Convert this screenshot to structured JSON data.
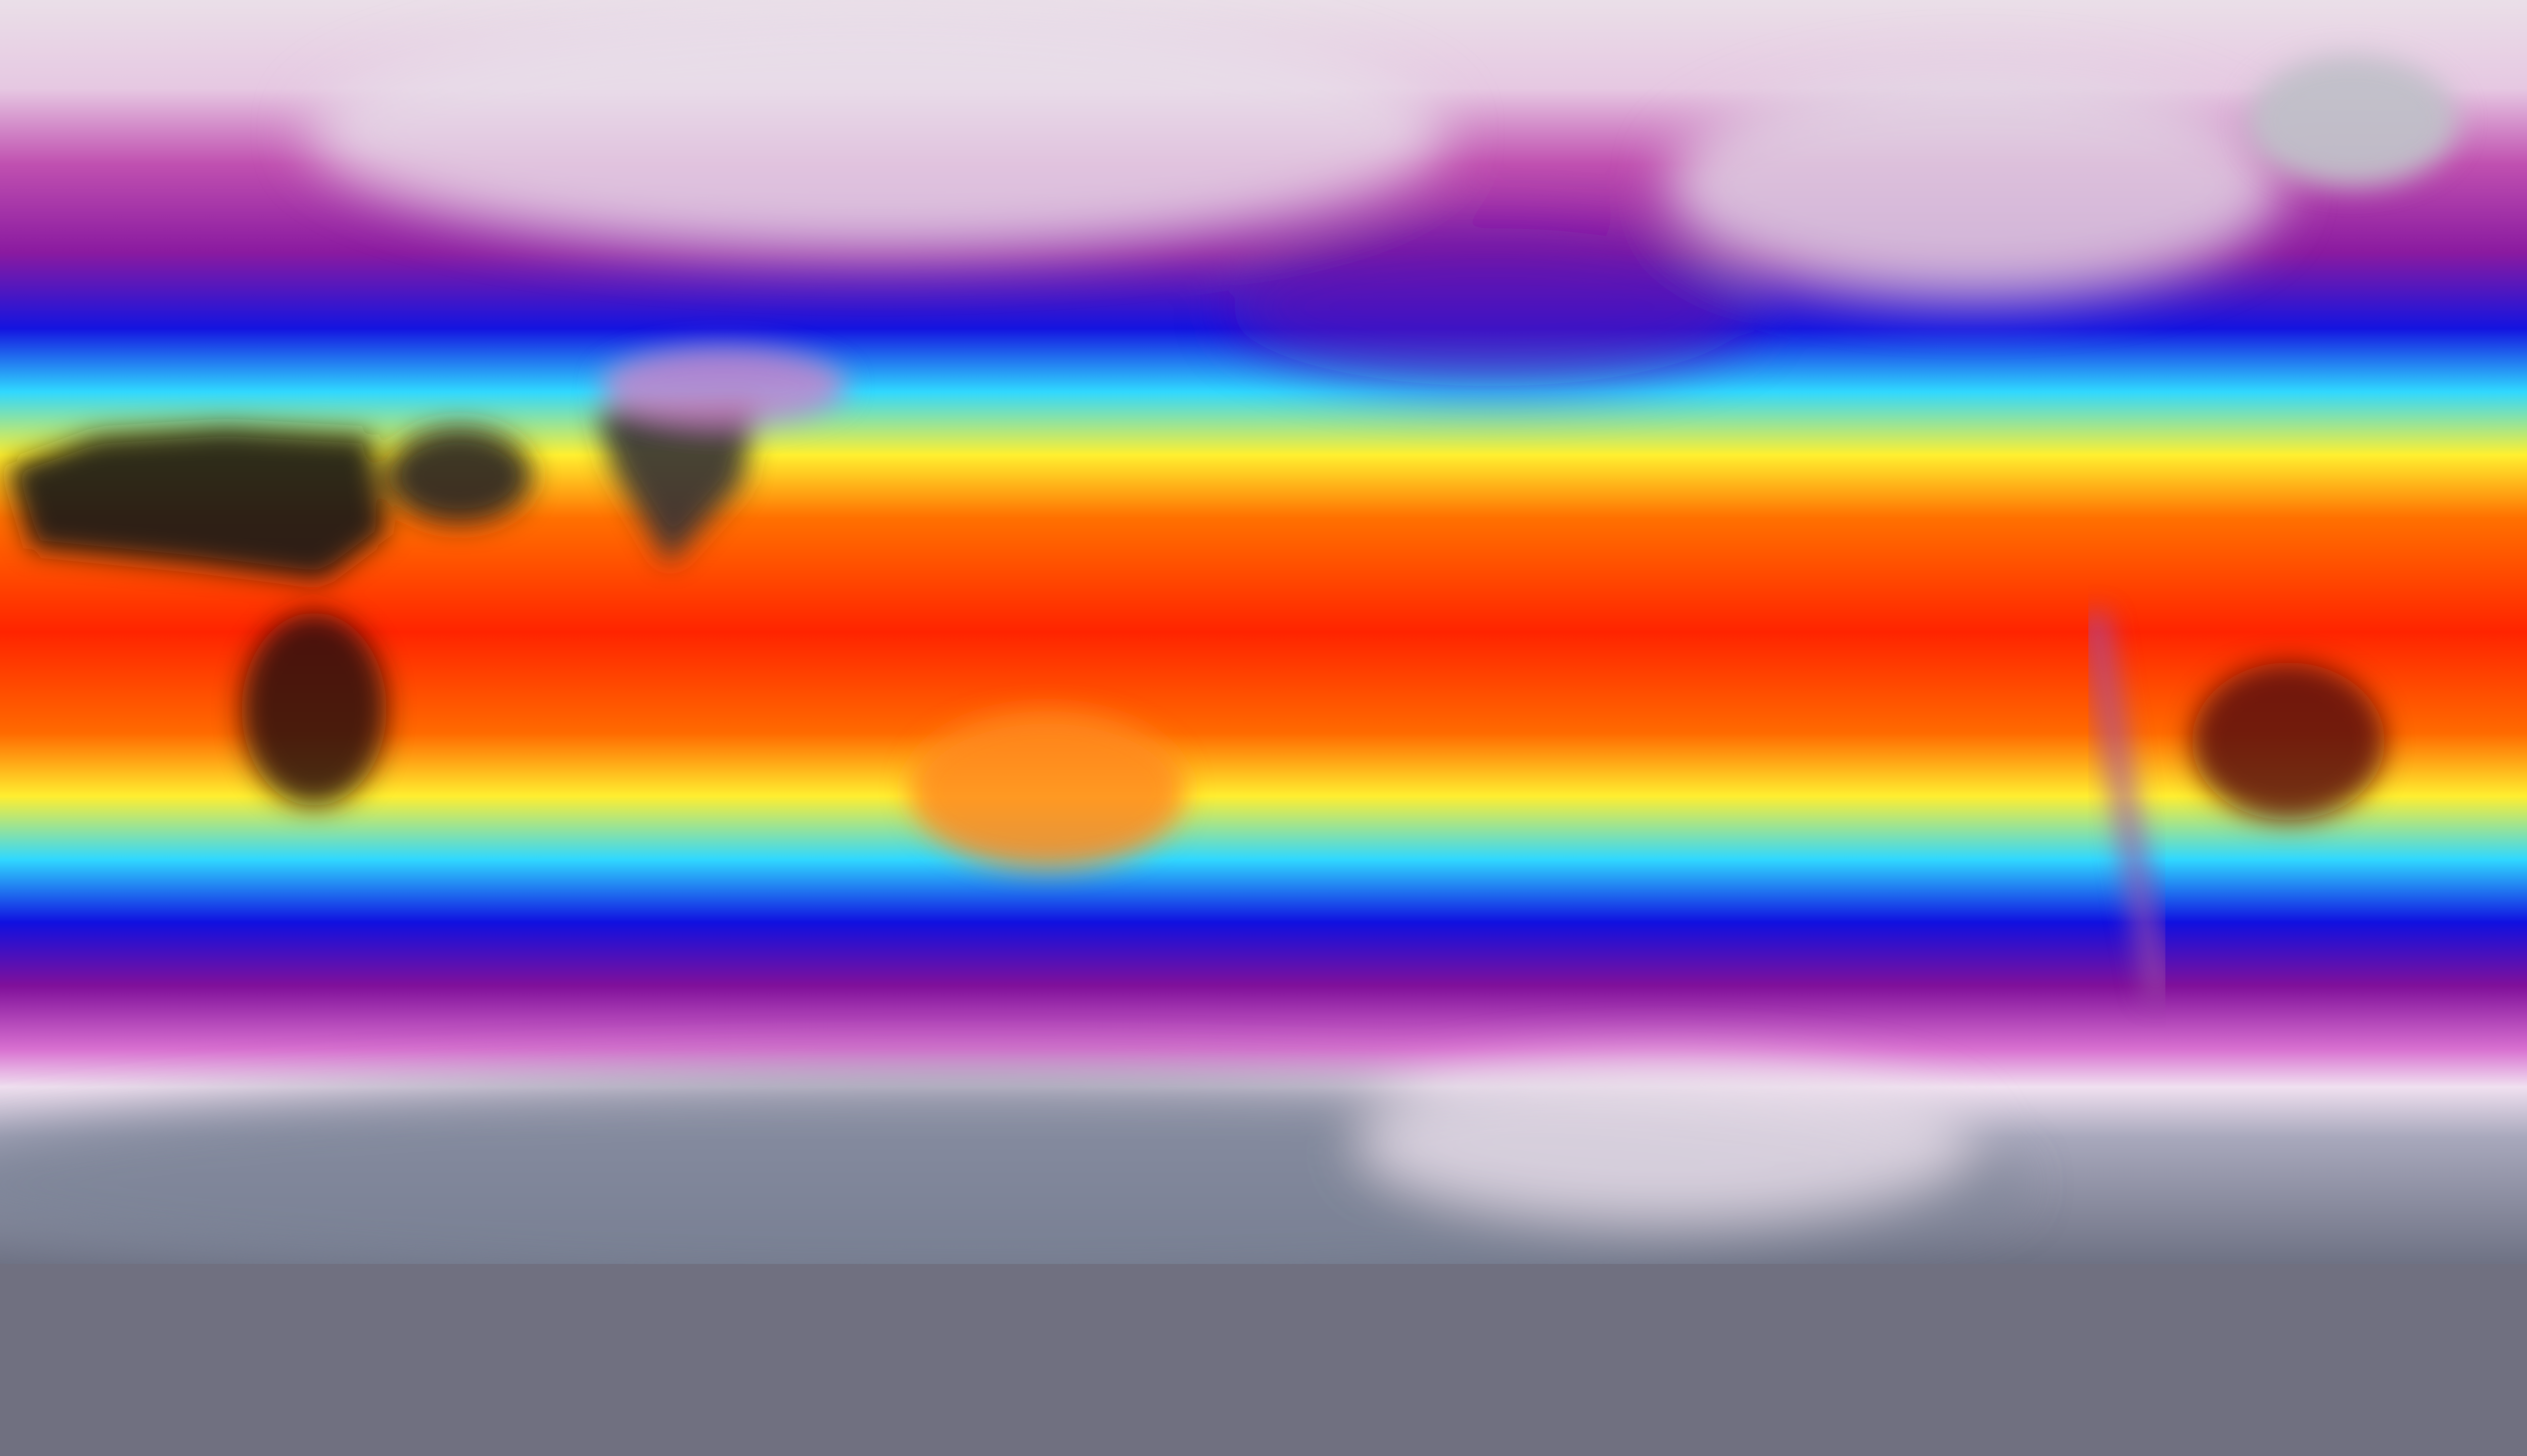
{
  "map": {
    "colormap": [
      "#e8dce8",
      "#c060b0",
      "#8a1aa0",
      "#1010e0",
      "#30e0ff",
      "#ffff30",
      "#ff7a00",
      "#ff2000"
    ],
    "land_hot_color": "#1a1416",
    "polar_color": "#767a8c"
  }
}
